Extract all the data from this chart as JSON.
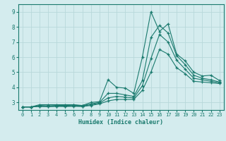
{
  "xlabel": "Humidex (Indice chaleur)",
  "bg_color": "#d4ecee",
  "grid_color_major": "#b8d8da",
  "grid_color_minor": "#cce4e6",
  "line_color": "#1a7a6e",
  "xlim": [
    -0.5,
    23.5
  ],
  "ylim": [
    2.5,
    9.5
  ],
  "xticks": [
    0,
    1,
    2,
    3,
    4,
    5,
    6,
    7,
    8,
    9,
    10,
    11,
    12,
    13,
    14,
    15,
    16,
    17,
    18,
    19,
    20,
    21,
    22,
    23
  ],
  "yticks": [
    3,
    4,
    5,
    6,
    7,
    8,
    9
  ],
  "series": [
    [
      2.7,
      2.7,
      2.85,
      2.85,
      2.85,
      2.85,
      2.85,
      2.8,
      3.0,
      3.05,
      4.5,
      4.0,
      3.95,
      3.6,
      6.0,
      9.0,
      7.7,
      8.2,
      6.2,
      5.75,
      5.0,
      4.75,
      4.8,
      4.45
    ],
    [
      2.7,
      2.7,
      2.8,
      2.78,
      2.8,
      2.8,
      2.82,
      2.78,
      2.9,
      3.0,
      3.6,
      3.6,
      3.5,
      3.4,
      4.45,
      7.3,
      8.1,
      7.6,
      6.1,
      5.5,
      4.8,
      4.6,
      4.5,
      4.35
    ],
    [
      2.7,
      2.7,
      2.75,
      2.72,
      2.75,
      2.75,
      2.77,
      2.75,
      2.85,
      2.95,
      3.3,
      3.4,
      3.35,
      3.3,
      4.1,
      5.9,
      7.5,
      7.0,
      5.8,
      5.2,
      4.6,
      4.5,
      4.4,
      4.3
    ],
    [
      2.7,
      2.7,
      2.73,
      2.72,
      2.74,
      2.73,
      2.74,
      2.73,
      2.8,
      2.9,
      3.1,
      3.2,
      3.2,
      3.2,
      3.8,
      5.0,
      6.5,
      6.2,
      5.3,
      4.9,
      4.4,
      4.35,
      4.3,
      4.25
    ]
  ]
}
